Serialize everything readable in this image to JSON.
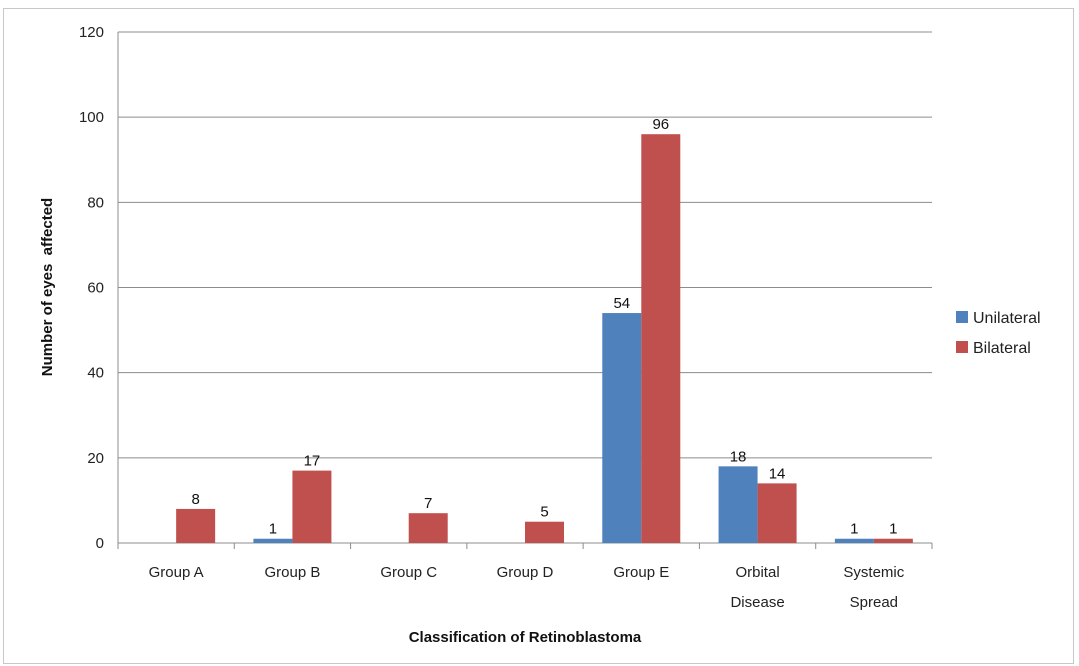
{
  "chart_data": {
    "type": "bar",
    "title": "",
    "xlabel": "Classification of Retinoblastoma",
    "ylabel": "Number of eyes  affected",
    "ylim": [
      0,
      120
    ],
    "yticks": [
      0,
      20,
      40,
      60,
      80,
      100,
      120
    ],
    "grid": true,
    "legend_position": "right",
    "categories": [
      [
        "Group A"
      ],
      [
        "Group B"
      ],
      [
        "Group C"
      ],
      [
        "Group D"
      ],
      [
        "Group E"
      ],
      [
        "Orbital",
        "Disease"
      ],
      [
        "Systemic",
        "Spread"
      ]
    ],
    "series": [
      {
        "name": "Unilateral",
        "color": "#4f81bd",
        "values": [
          0,
          1,
          0,
          0,
          54,
          18,
          1
        ],
        "labels": [
          "",
          "1",
          "",
          "",
          "54",
          "18",
          "1"
        ]
      },
      {
        "name": "Bilateral",
        "color": "#c0504d",
        "values": [
          8,
          17,
          7,
          5,
          96,
          14,
          1
        ],
        "labels": [
          "8",
          "17",
          "7",
          "5",
          "96",
          "14",
          "1"
        ]
      }
    ]
  }
}
